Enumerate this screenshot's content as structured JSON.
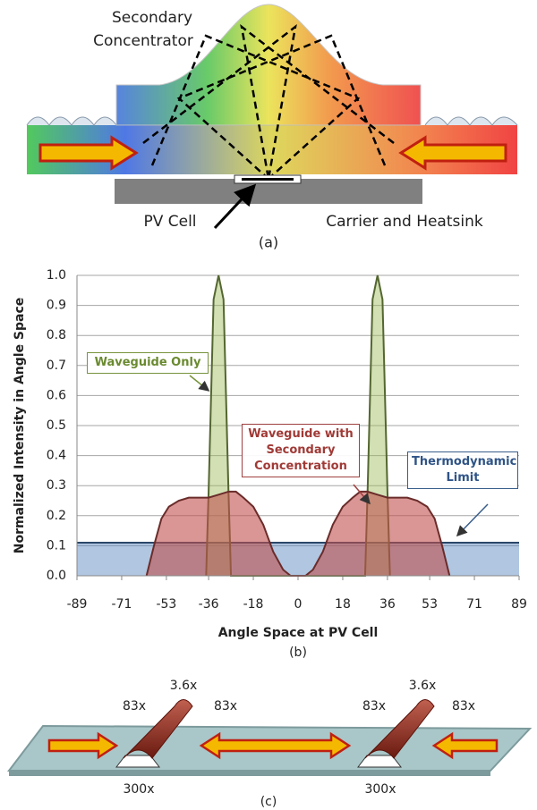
{
  "panel_a": {
    "concentrator_lines": [
      "Secondary",
      "Concentrator"
    ],
    "pv_cell": "PV Cell",
    "carrier": "Carrier and Heatsink",
    "caption": "(a)"
  },
  "chart_data": {
    "type": "area",
    "y_label": "Normalized Intensity in Angle Space",
    "x_label": "Angle Space at PV Cell",
    "caption": "(b)",
    "xlim": [
      -89,
      89
    ],
    "xticks": [
      -89,
      -71,
      -53,
      -36,
      -18,
      0,
      18,
      36,
      53,
      71,
      89
    ],
    "ylim": [
      0,
      1
    ],
    "yticks": [
      {
        "value": 0,
        "label": "0.0"
      },
      0.1,
      0.2,
      0.3,
      0.4,
      0.5,
      0.6,
      0.7,
      0.8,
      0.9,
      {
        "value": 1,
        "label": "1.0"
      }
    ],
    "grid": true,
    "series": [
      {
        "name": "Thermodynamic Limit",
        "color": "#4f81bd",
        "x": [
          -89,
          89
        ],
        "values": [
          0.11,
          0.11
        ]
      },
      {
        "name": "Waveguide Only",
        "color": "#9bbb59",
        "x": [
          -37,
          -36,
          -34,
          -32,
          -30,
          -28,
          -27,
          27,
          28,
          30,
          32,
          34,
          36,
          37
        ],
        "values": [
          0,
          0.28,
          0.92,
          1.0,
          0.92,
          0.28,
          0,
          0,
          0.28,
          0.92,
          1.0,
          0.92,
          0.28,
          0
        ]
      },
      {
        "name": "Waveguide with Secondary Concentration",
        "color": "#c0504d",
        "x": [
          -61,
          -58,
          -55,
          -52,
          -48,
          -44,
          -40,
          -36,
          -32,
          -28,
          -25,
          -22,
          -18,
          -14,
          -10,
          -6,
          -3,
          0,
          3,
          6,
          10,
          14,
          18,
          22,
          25,
          28,
          32,
          36,
          40,
          44,
          48,
          52,
          55,
          58,
          61
        ],
        "values": [
          0,
          0.1,
          0.19,
          0.23,
          0.25,
          0.26,
          0.26,
          0.26,
          0.27,
          0.28,
          0.28,
          0.26,
          0.23,
          0.17,
          0.08,
          0.02,
          0,
          0,
          0,
          0.02,
          0.08,
          0.17,
          0.23,
          0.26,
          0.28,
          0.28,
          0.27,
          0.26,
          0.26,
          0.26,
          0.25,
          0.23,
          0.19,
          0.1,
          0
        ]
      }
    ]
  },
  "panel_c": {
    "labels": [
      "83x",
      "3.6x",
      "83x",
      "300x",
      "83x",
      "3.6x",
      "83x",
      "300x"
    ],
    "caption": "(c)"
  }
}
